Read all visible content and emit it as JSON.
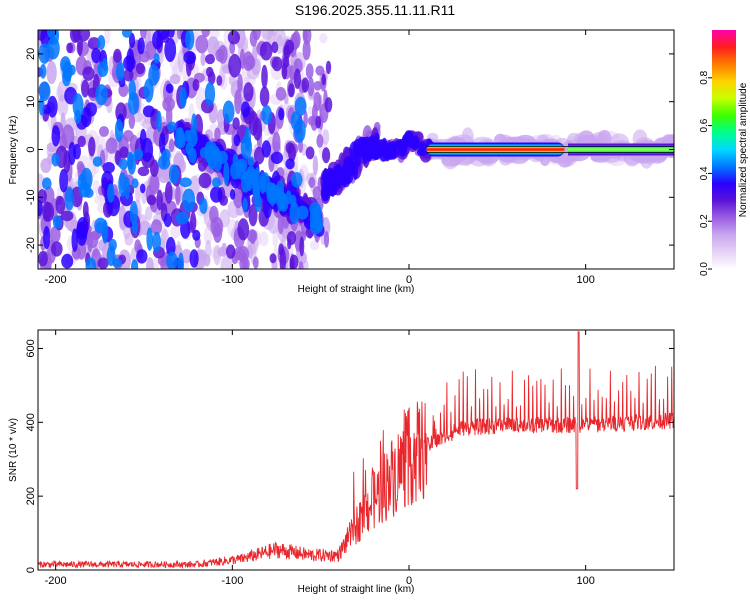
{
  "title": "S196.2025.355.11.11.R11",
  "colors": {
    "snr_line": "#e8262b",
    "colormap": [
      "#ffffff",
      "#e6d2f5",
      "#c9a6ee",
      "#9b5fe3",
      "#5b14d9",
      "#2a00ff",
      "#0077ff",
      "#00d9ff",
      "#00ff8c",
      "#3cff00",
      "#c8ff00",
      "#ffd200",
      "#ff7a00",
      "#ff1e1e",
      "#ff00a8"
    ]
  },
  "chart_data": [
    {
      "type": "heatmap",
      "name": "spectrogram",
      "xlabel": "Height of straight line (km)",
      "ylabel": "Frequency (Hz)",
      "xlim": [
        -210,
        150
      ],
      "ylim": [
        -25,
        25
      ],
      "xticks": [
        -200,
        -100,
        0,
        100
      ],
      "yticks": [
        -20,
        -10,
        0,
        10,
        20
      ],
      "colorbar": {
        "label": "Normalized spectral amplitude",
        "range": [
          0,
          1
        ],
        "ticks": [
          "0.0",
          "0.2",
          "0.4",
          "0.6",
          "0.8"
        ]
      },
      "main_band": {
        "x_start": 10,
        "x_end": 150,
        "frequency": 0
      }
    },
    {
      "type": "line",
      "name": "snr",
      "xlabel": "Height of straight line (km)",
      "ylabel": "SNR (10 * v/v)",
      "xlim": [
        -210,
        150
      ],
      "ylim": [
        0,
        650
      ],
      "xticks": [
        -200,
        -100,
        0,
        100
      ],
      "yticks": [
        0,
        200,
        400,
        600
      ],
      "envelope": {
        "x": [
          -210,
          -120,
          -95,
          -75,
          -55,
          -40,
          -30,
          -20,
          -10,
          0,
          10,
          20,
          30,
          50,
          70,
          90,
          110,
          130,
          150
        ],
        "y": [
          15,
          15,
          30,
          55,
          40,
          40,
          120,
          190,
          250,
          305,
          335,
          360,
          385,
          390,
          392,
          392,
          395,
          400,
          405
        ]
      },
      "dip": {
        "x": 95,
        "y": 220
      },
      "max_peak": {
        "x": 96,
        "y": 645
      }
    }
  ]
}
